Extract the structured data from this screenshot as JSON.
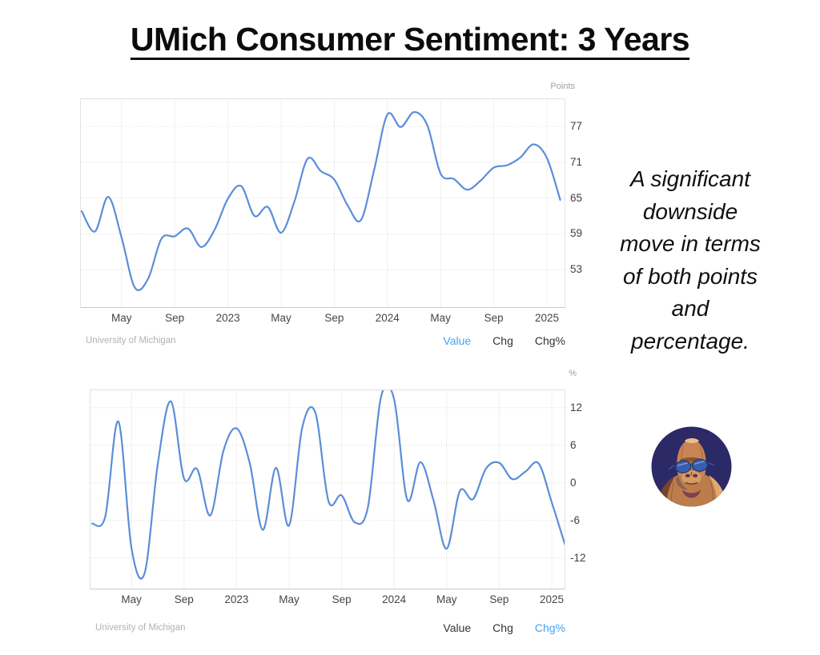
{
  "page": {
    "title": "UMich Consumer Sentiment: 3 Years",
    "annotation": "A significant downside move in terms of both points and percentage.",
    "background": "#ffffff"
  },
  "colors": {
    "line": "#5b8ed8",
    "active_toggle": "#42a4f5",
    "toggle": "#333333",
    "tick_text": "#3f3f3f",
    "muted_text": "#a0a0a6",
    "grid_dotted": "#dcdcdc",
    "grid_vertical": "#f0f0f0",
    "plot_border": "#e2e2e2",
    "axis_line": "#c9c9c9",
    "avatar_background": "#2b2a66"
  },
  "chart_data": [
    {
      "type": "line",
      "ylabel": "Points",
      "source": "University of Michigan",
      "legend": "none",
      "grid": true,
      "x_axis_range": "Feb 2022 - Feb 2025",
      "ylim": [
        46.6,
        81.7
      ],
      "y_ticks": [
        77,
        71,
        65,
        59,
        53
      ],
      "x_ticks": [
        {
          "index": 3,
          "label": "May"
        },
        {
          "index": 7,
          "label": "Sep"
        },
        {
          "index": 11,
          "label": "2023"
        },
        {
          "index": 15,
          "label": "May"
        },
        {
          "index": 19,
          "label": "Sep"
        },
        {
          "index": 23,
          "label": "2024"
        },
        {
          "index": 27,
          "label": "May"
        },
        {
          "index": 31,
          "label": "Sep"
        },
        {
          "index": 35,
          "label": "2025"
        }
      ],
      "x": [
        "Feb 2022",
        "Mar 2022",
        "Apr 2022",
        "May 2022",
        "Jun 2022",
        "Jul 2022",
        "Aug 2022",
        "Sep 2022",
        "Oct 2022",
        "Nov 2022",
        "Dec 2022",
        "Jan 2023",
        "Feb 2023",
        "Mar 2023",
        "Apr 2023",
        "May 2023",
        "Jun 2023",
        "Jul 2023",
        "Aug 2023",
        "Sep 2023",
        "Oct 2023",
        "Nov 2023",
        "Dec 2023",
        "Jan 2024",
        "Feb 2024",
        "Mar 2024",
        "Apr 2024",
        "May 2024",
        "Jun 2024",
        "Jul 2024",
        "Aug 2024",
        "Sep 2024",
        "Oct 2024",
        "Nov 2024",
        "Dec 2024",
        "Jan 2025",
        "Feb 2025"
      ],
      "values": [
        62.8,
        59.4,
        65.2,
        58.4,
        50.0,
        51.5,
        58.2,
        58.6,
        59.9,
        56.8,
        59.7,
        64.9,
        67.0,
        62.0,
        63.5,
        59.2,
        64.4,
        71.6,
        69.5,
        68.1,
        63.8,
        61.3,
        69.7,
        79.0,
        76.9,
        79.4,
        77.2,
        69.1,
        68.2,
        66.4,
        67.9,
        70.1,
        70.5,
        71.8,
        74.0,
        71.7,
        64.7
      ],
      "toggles": [
        {
          "label": "Value",
          "active": true
        },
        {
          "label": "Chg",
          "active": false
        },
        {
          "label": "Chg%",
          "active": false
        }
      ]
    },
    {
      "type": "line",
      "ylabel": "%",
      "source": "University of Michigan",
      "legend": "none",
      "grid": true,
      "x_axis_range": "Feb 2022 - Feb 2025",
      "ylim": [
        -17.0,
        14.9
      ],
      "y_ticks": [
        12,
        6,
        0,
        -6,
        -12
      ],
      "x_ticks": [
        {
          "index": 3,
          "label": "May"
        },
        {
          "index": 7,
          "label": "Sep"
        },
        {
          "index": 11,
          "label": "2023"
        },
        {
          "index": 15,
          "label": "May"
        },
        {
          "index": 19,
          "label": "Sep"
        },
        {
          "index": 23,
          "label": "2024"
        },
        {
          "index": 27,
          "label": "May"
        },
        {
          "index": 31,
          "label": "Sep"
        },
        {
          "index": 35,
          "label": "2025"
        }
      ],
      "x": [
        "Feb 2022",
        "Mar 2022",
        "Apr 2022",
        "May 2022",
        "Jun 2022",
        "Jul 2022",
        "Aug 2022",
        "Sep 2022",
        "Oct 2022",
        "Nov 2022",
        "Dec 2022",
        "Jan 2023",
        "Feb 2023",
        "Mar 2023",
        "Apr 2023",
        "May 2023",
        "Jun 2023",
        "Jul 2023",
        "Aug 2023",
        "Sep 2023",
        "Oct 2023",
        "Nov 2023",
        "Dec 2023",
        "Jan 2024",
        "Feb 2024",
        "Mar 2024",
        "Apr 2024",
        "May 2024",
        "Jun 2024",
        "Jul 2024",
        "Aug 2024",
        "Sep 2024",
        "Oct 2024",
        "Nov 2024",
        "Dec 2024",
        "Jan 2025",
        "Feb 2025"
      ],
      "values": [
        -6.5,
        -5.4,
        9.8,
        -10.4,
        -14.4,
        3.0,
        13.0,
        0.7,
        2.2,
        -5.2,
        5.1,
        8.7,
        3.2,
        -7.5,
        2.4,
        -6.8,
        8.8,
        11.2,
        -2.9,
        -2.0,
        -6.3,
        -3.9,
        13.7,
        13.3,
        -2.7,
        3.3,
        -2.8,
        -10.5,
        -1.3,
        -2.6,
        2.3,
        3.2,
        0.6,
        1.8,
        3.1,
        -3.1,
        -9.8
      ],
      "toggles": [
        {
          "label": "Value",
          "active": false
        },
        {
          "label": "Chg",
          "active": false
        },
        {
          "label": "Chg%",
          "active": true
        }
      ]
    }
  ]
}
